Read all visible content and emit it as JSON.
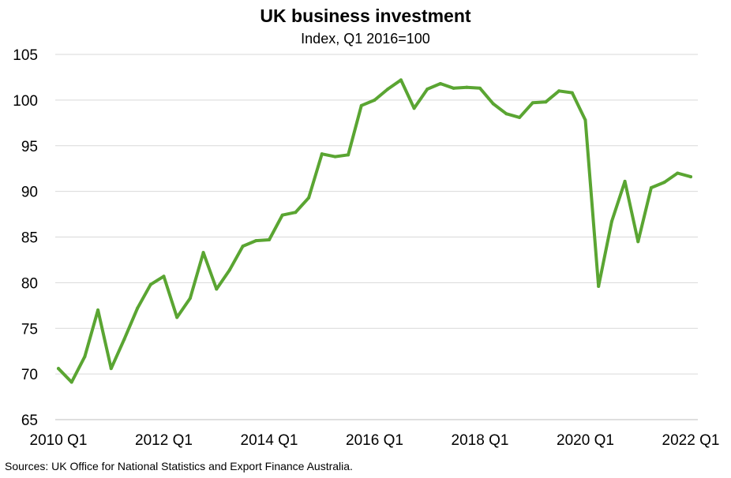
{
  "chart_data": {
    "type": "line",
    "title": "UK business investment",
    "subtitle": "Index, Q1 2016=100",
    "source": "Sources: UK Office for National Statistics and Export Finance Australia.",
    "ylim": [
      65,
      105
    ],
    "y_ticks": [
      65,
      70,
      75,
      80,
      85,
      90,
      95,
      100,
      105
    ],
    "x_tick_labels": [
      "2010 Q1",
      "2012 Q1",
      "2014 Q1",
      "2016 Q1",
      "2018 Q1",
      "2020 Q1",
      "2022 Q1"
    ],
    "grid": true,
    "line_color": "#5aa532",
    "x": [
      "2010 Q1",
      "2010 Q2",
      "2010 Q3",
      "2010 Q4",
      "2011 Q1",
      "2011 Q2",
      "2011 Q3",
      "2011 Q4",
      "2012 Q1",
      "2012 Q2",
      "2012 Q3",
      "2012 Q4",
      "2013 Q1",
      "2013 Q2",
      "2013 Q3",
      "2013 Q4",
      "2014 Q1",
      "2014 Q2",
      "2014 Q3",
      "2014 Q4",
      "2015 Q1",
      "2015 Q2",
      "2015 Q3",
      "2015 Q4",
      "2016 Q1",
      "2016 Q2",
      "2016 Q3",
      "2016 Q4",
      "2017 Q1",
      "2017 Q2",
      "2017 Q3",
      "2017 Q4",
      "2018 Q1",
      "2018 Q2",
      "2018 Q3",
      "2018 Q4",
      "2019 Q1",
      "2019 Q2",
      "2019 Q3",
      "2019 Q4",
      "2020 Q1",
      "2020 Q2",
      "2020 Q3",
      "2020 Q4",
      "2021 Q1",
      "2021 Q2",
      "2021 Q3",
      "2021 Q4",
      "2022 Q1"
    ],
    "series": [
      {
        "values": [
          70.6,
          69.1,
          71.9,
          77.0,
          70.6,
          73.8,
          77.2,
          79.8,
          80.7,
          76.2,
          78.3,
          83.3,
          79.3,
          81.4,
          84.0,
          84.6,
          84.7,
          87.4,
          87.7,
          89.3,
          94.1,
          93.8,
          94.0,
          99.4,
          100.0,
          101.2,
          102.2,
          99.1,
          101.2,
          101.8,
          101.3,
          101.4,
          101.3,
          99.6,
          98.5,
          98.1,
          99.7,
          99.8,
          101.0,
          100.8,
          97.8,
          79.6,
          86.7,
          91.1,
          84.5,
          90.4,
          91.0,
          92.0,
          91.6
        ]
      }
    ]
  }
}
